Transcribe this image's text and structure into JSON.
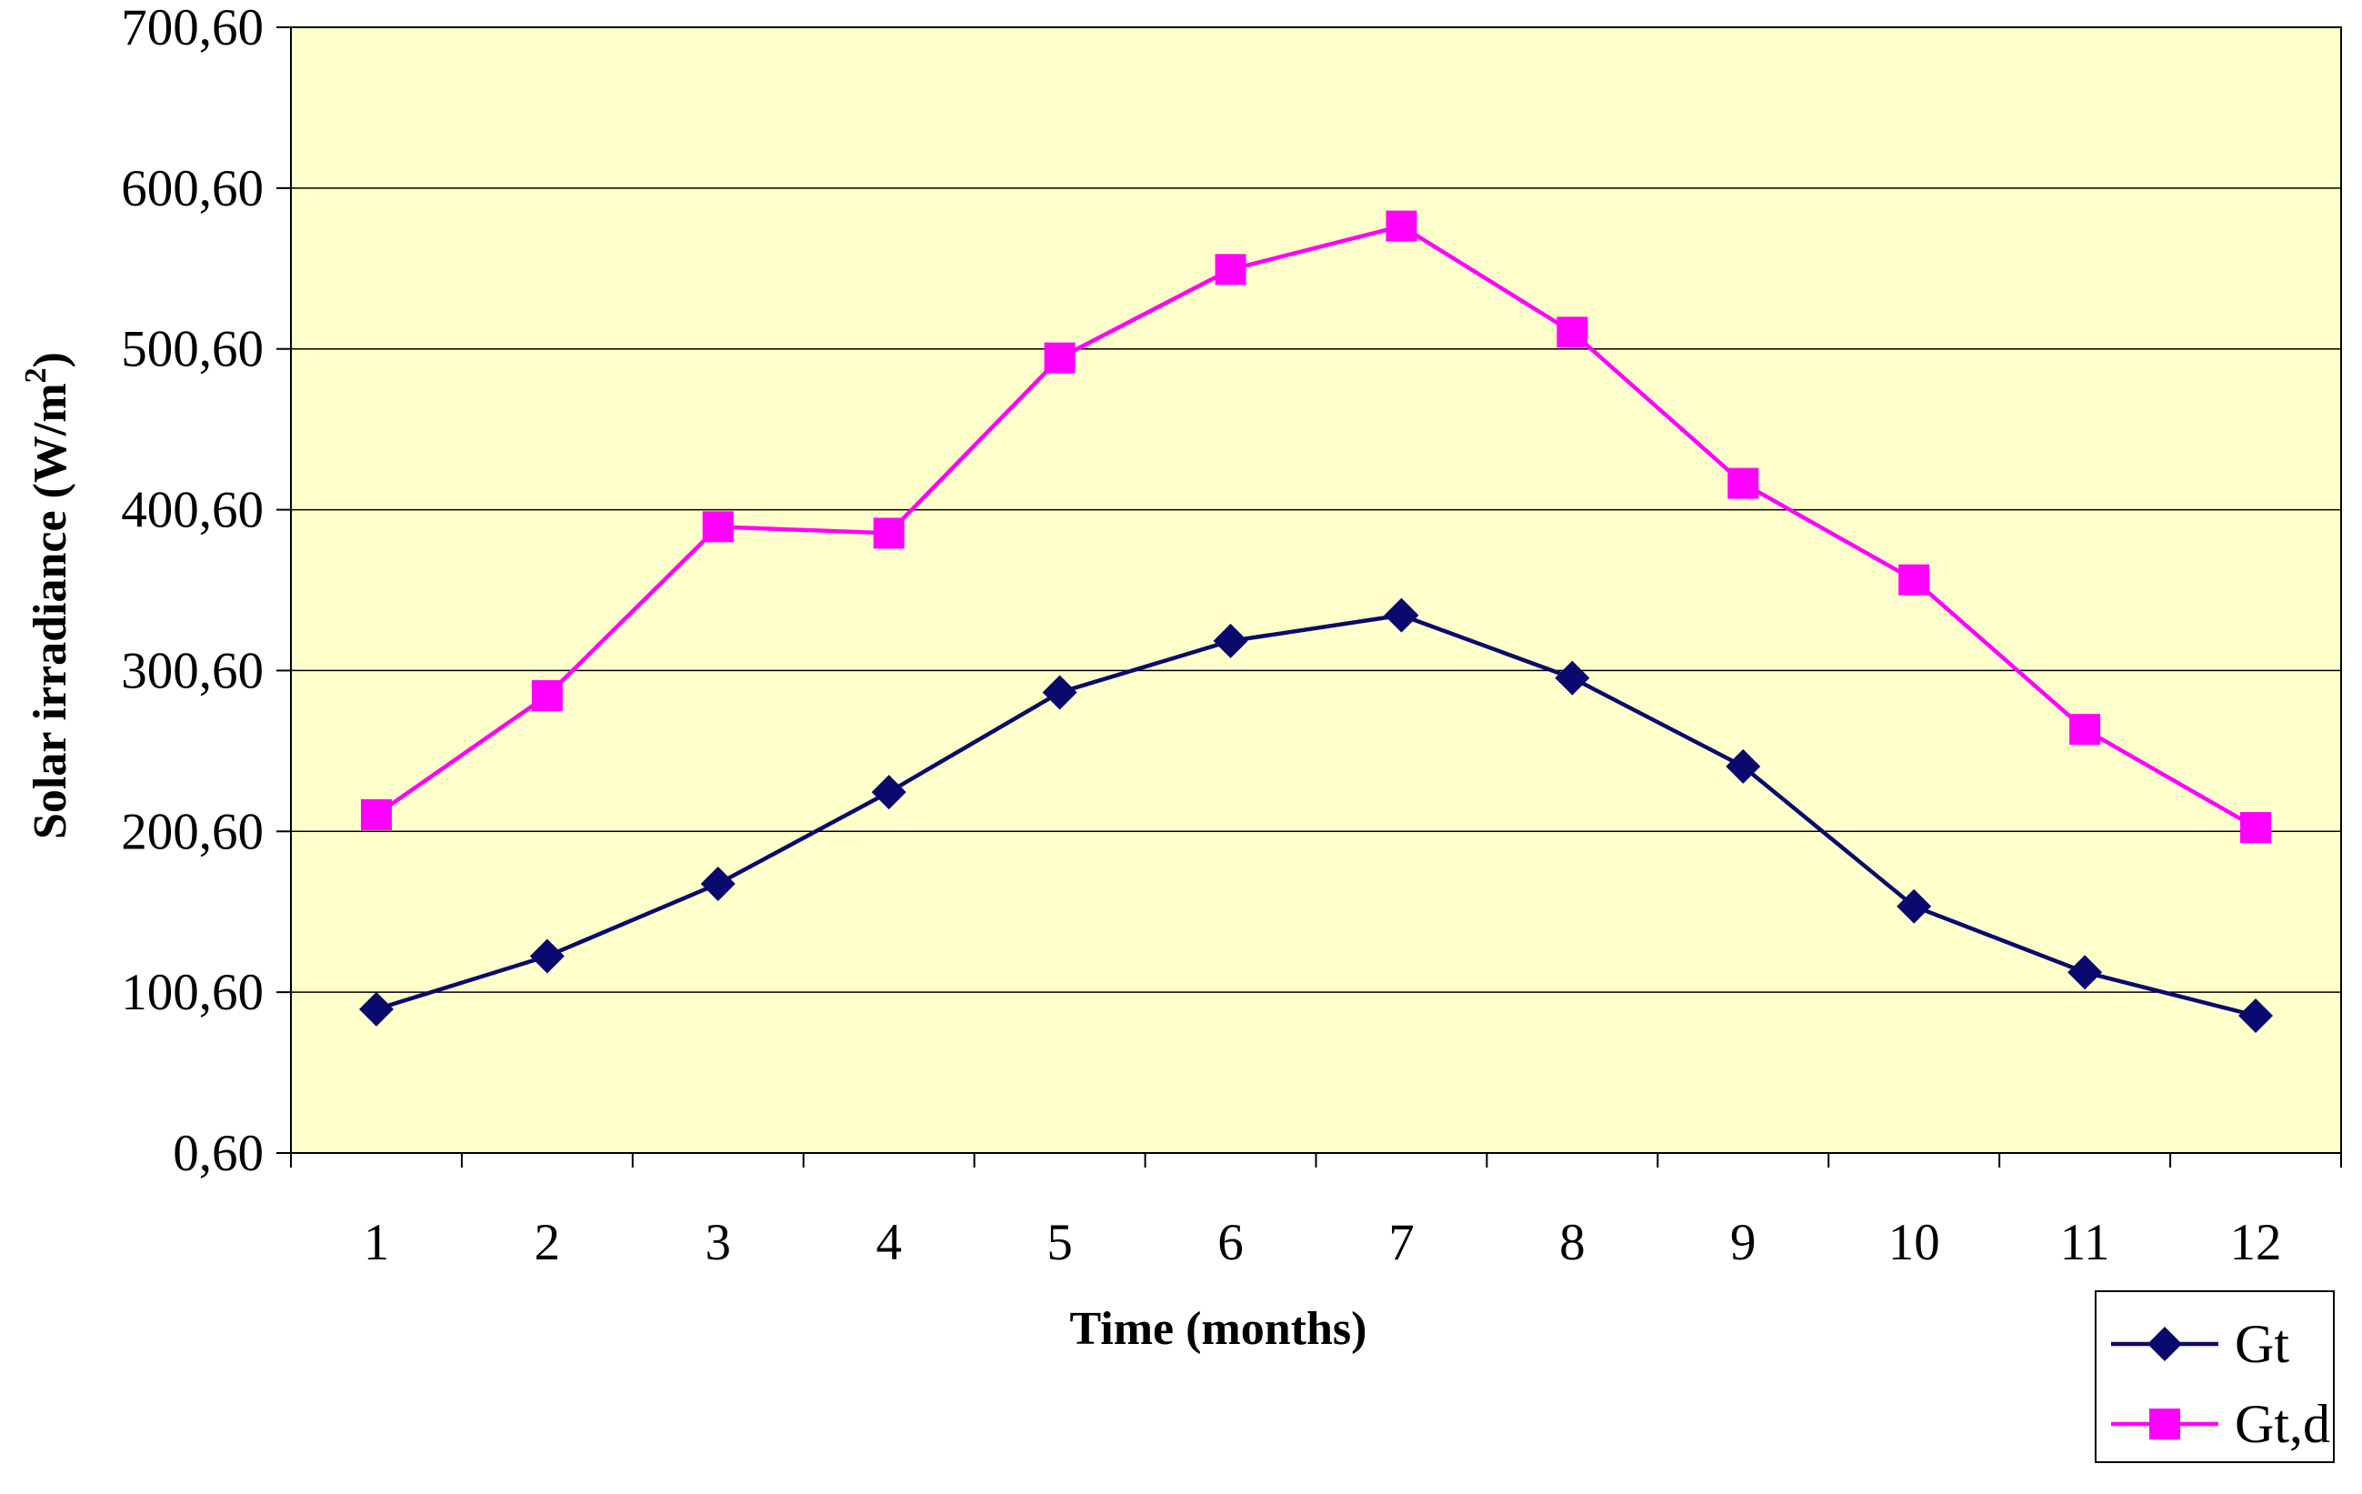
{
  "chart_data": {
    "type": "line",
    "title": "",
    "xlabel": "Time (months)",
    "ylabel_main": "Solar irradiance (W/m",
    "ylabel_sup": "2",
    "ylabel_close": ")",
    "categories": [
      "1",
      "2",
      "3",
      "4",
      "5",
      "6",
      "7",
      "8",
      "9",
      "10",
      "11",
      "12"
    ],
    "yticks": [
      "0,60",
      "100,60",
      "200,60",
      "300,60",
      "400,60",
      "500,60",
      "600,60",
      "700,60"
    ],
    "ylim": [
      0.6,
      700.6
    ],
    "grid": true,
    "legend_position": "bottom-right",
    "series": [
      {
        "name": "Gt",
        "color": "#0a0a6e",
        "marker": "diamond",
        "values": [
          90,
          123,
          168,
          225,
          287,
          319,
          335,
          296,
          241,
          154,
          113,
          86
        ]
      },
      {
        "name": "Gt,d",
        "color": "#ff00ff",
        "marker": "square",
        "values": [
          211,
          285,
          390,
          386,
          495,
          550,
          577,
          511,
          417,
          357,
          264,
          203
        ]
      }
    ]
  },
  "colors": {
    "plot_background": "#ffffcc",
    "gridline": "#000000"
  }
}
